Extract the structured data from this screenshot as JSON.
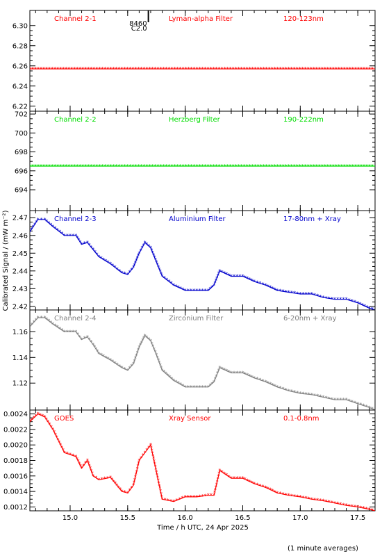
{
  "chart_data": {
    "type": "scatter",
    "ylabel": "Calibrated Signal / (mW m⁻²)",
    "xlabel": "Time / h UTC, 24 Apr 2025",
    "footnote": "(1 minute averages)",
    "xlim": [
      14.65,
      17.65
    ],
    "xticks": [
      15.0,
      15.5,
      16.0,
      16.5,
      17.0,
      17.5
    ],
    "xtick_labels": [
      "15.0",
      "15.5",
      "16.0",
      "16.5",
      "17.0",
      "17.5"
    ],
    "annotation": {
      "text": [
        "8460",
        "C2.0"
      ],
      "x": 15.68
    },
    "marker": "*",
    "panels": [
      {
        "labels": [
          "Channel 2-1",
          "Lyman-alpha Filter",
          "120-123nm"
        ],
        "color": "#ff0000",
        "ylim": [
          6.215,
          6.315
        ],
        "yticks": [
          6.22,
          6.24,
          6.26,
          6.28,
          6.3
        ],
        "ytick_labels": [
          "6.22",
          "6.24",
          "6.26",
          "6.28",
          "6.30"
        ],
        "x": [
          14.65,
          17.65
        ],
        "y": [
          6.257,
          6.257
        ]
      },
      {
        "labels": [
          "Channel 2-2",
          "Herzberg Filter",
          "190-222nm"
        ],
        "color": "#00dd00",
        "ylim": [
          691.8,
          702.3
        ],
        "yticks": [
          694,
          696,
          698,
          700,
          702
        ],
        "ytick_labels": [
          "694",
          "696",
          "698",
          "700",
          "702"
        ],
        "x": [
          14.65,
          17.65
        ],
        "y": [
          696.5,
          696.5
        ]
      },
      {
        "labels": [
          "Channel 2-3",
          "Aluminium Filter",
          "17-80nm + Xray"
        ],
        "color": "#0000cc",
        "ylim": [
          2.418,
          2.474
        ],
        "yticks": [
          2.42,
          2.43,
          2.44,
          2.45,
          2.46,
          2.47
        ],
        "ytick_labels": [
          "2.42",
          "2.43",
          "2.44",
          "2.45",
          "2.46",
          "2.47"
        ],
        "x": [
          14.65,
          14.72,
          14.78,
          14.85,
          14.95,
          15.05,
          15.1,
          15.15,
          15.2,
          15.25,
          15.35,
          15.45,
          15.5,
          15.55,
          15.6,
          15.65,
          15.7,
          15.75,
          15.8,
          15.9,
          16.0,
          16.1,
          16.2,
          16.25,
          16.3,
          16.4,
          16.5,
          16.6,
          16.7,
          16.8,
          16.9,
          17.0,
          17.1,
          17.2,
          17.3,
          17.4,
          17.5,
          17.6,
          17.65
        ],
        "y": [
          2.462,
          2.469,
          2.469,
          2.465,
          2.46,
          2.46,
          2.455,
          2.456,
          2.452,
          2.448,
          2.444,
          2.439,
          2.438,
          2.442,
          2.45,
          2.456,
          2.453,
          2.445,
          2.437,
          2.432,
          2.429,
          2.429,
          2.429,
          2.432,
          2.44,
          2.437,
          2.437,
          2.434,
          2.432,
          2.429,
          2.428,
          2.427,
          2.427,
          2.425,
          2.424,
          2.424,
          2.422,
          2.419,
          2.418
        ]
      },
      {
        "labels": [
          "Channel 2-4",
          "Zirconium Filter",
          "6-20nm + Xray"
        ],
        "color": "#808080",
        "ylim": [
          1.099,
          1.177
        ],
        "yticks": [
          1.12,
          1.14,
          1.16
        ],
        "ytick_labels": [
          "1.12",
          "1.14",
          "1.16"
        ],
        "x": [
          14.65,
          14.72,
          14.78,
          14.85,
          14.95,
          15.05,
          15.1,
          15.15,
          15.2,
          15.25,
          15.35,
          15.45,
          15.5,
          15.55,
          15.6,
          15.65,
          15.7,
          15.75,
          15.8,
          15.9,
          16.0,
          16.1,
          16.2,
          16.25,
          16.3,
          16.4,
          16.5,
          16.6,
          16.7,
          16.8,
          16.9,
          17.0,
          17.1,
          17.2,
          17.3,
          17.4,
          17.5,
          17.6,
          17.65
        ],
        "y": [
          1.164,
          1.171,
          1.171,
          1.166,
          1.16,
          1.16,
          1.154,
          1.156,
          1.15,
          1.143,
          1.138,
          1.132,
          1.13,
          1.135,
          1.148,
          1.157,
          1.153,
          1.142,
          1.13,
          1.122,
          1.117,
          1.117,
          1.117,
          1.121,
          1.132,
          1.128,
          1.128,
          1.124,
          1.121,
          1.117,
          1.114,
          1.112,
          1.111,
          1.109,
          1.107,
          1.107,
          1.104,
          1.101,
          1.099
        ]
      },
      {
        "labels": [
          "GOES",
          "Xray Sensor",
          "0.1-0.8nm"
        ],
        "color": "#ff0000",
        "ylim": [
          0.00115,
          0.00245
        ],
        "yticks": [
          0.0012,
          0.0014,
          0.0016,
          0.0018,
          0.002,
          0.0022,
          0.0024
        ],
        "ytick_labels": [
          "0.0012",
          "0.0014",
          "0.0016",
          "0.0018",
          "0.0020",
          "0.0022",
          "0.0024"
        ],
        "x": [
          14.65,
          14.72,
          14.78,
          14.85,
          14.95,
          15.05,
          15.1,
          15.15,
          15.2,
          15.25,
          15.35,
          15.45,
          15.5,
          15.55,
          15.6,
          15.65,
          15.7,
          15.75,
          15.8,
          15.9,
          16.0,
          16.1,
          16.2,
          16.25,
          16.3,
          16.4,
          16.5,
          16.6,
          16.7,
          16.8,
          16.9,
          17.0,
          17.1,
          17.2,
          17.3,
          17.4,
          17.5,
          17.6,
          17.65
        ],
        "y": [
          0.0023,
          0.0024,
          0.00236,
          0.0022,
          0.0019,
          0.00185,
          0.0017,
          0.0018,
          0.0016,
          0.00155,
          0.00158,
          0.0014,
          0.00138,
          0.00148,
          0.0018,
          0.0019,
          0.002,
          0.00165,
          0.0013,
          0.00127,
          0.00133,
          0.00133,
          0.00135,
          0.00135,
          0.00167,
          0.00157,
          0.00157,
          0.0015,
          0.00145,
          0.00138,
          0.00135,
          0.00133,
          0.0013,
          0.00128,
          0.00125,
          0.00122,
          0.0012,
          0.00117,
          0.00115
        ]
      }
    ]
  }
}
